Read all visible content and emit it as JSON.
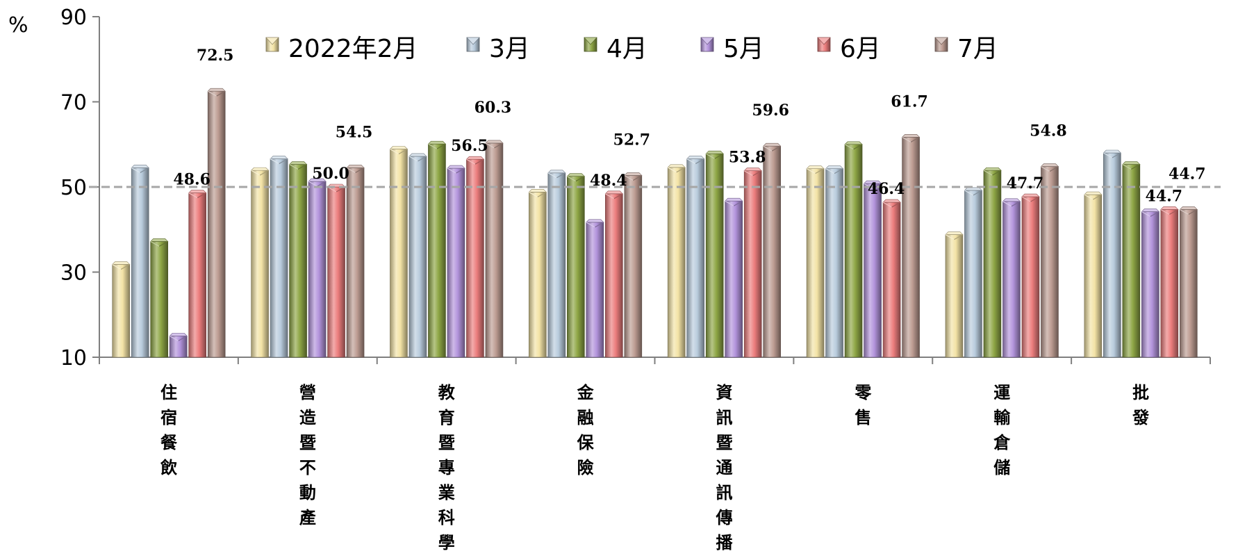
{
  "chart_data": {
    "type": "bar",
    "unit_label": "%",
    "ylim": [
      10,
      90
    ],
    "yticks": [
      10,
      30,
      50,
      70,
      90
    ],
    "reference_line": 50,
    "categories": [
      "住宿餐飲",
      "營造暨不動產",
      "教育暨專業科學",
      "金融保險",
      "資訊暨通訊傳播",
      "零售",
      "運輸倉儲",
      "批發"
    ],
    "series": [
      {
        "name": "2022年2月",
        "color": "#F3E3A6",
        "values": [
          31.8,
          53.9,
          58.9,
          48.8,
          54.6,
          54.3,
          38.8,
          48.2
        ]
      },
      {
        "name": "3月",
        "color": "#B9CCDD",
        "values": [
          54.5,
          56.6,
          57.2,
          53.3,
          56.6,
          54.3,
          49.2,
          58.0
        ]
      },
      {
        "name": "4月",
        "color": "#8EA645",
        "values": [
          37.2,
          55.3,
          60.1,
          52.5,
          57.8,
          60.0,
          53.9,
          55.3
        ]
      },
      {
        "name": "5月",
        "color": "#B394DC",
        "values": [
          15.0,
          51.3,
          54.4,
          41.7,
          46.7,
          50.8,
          46.6,
          44.2
        ]
      },
      {
        "name": "6月",
        "color": "#EC7D7D",
        "values": [
          48.6,
          50.0,
          56.5,
          48.4,
          53.8,
          46.4,
          47.7,
          44.7
        ]
      },
      {
        "name": "7月",
        "color": "#BD9C92",
        "values": [
          72.5,
          54.5,
          60.3,
          52.7,
          59.6,
          61.7,
          54.8,
          44.7
        ]
      }
    ],
    "labels": [
      {
        "category": 0,
        "series": 4,
        "text": "48.6"
      },
      {
        "category": 0,
        "series": 5,
        "text": "72.5"
      },
      {
        "category": 1,
        "series": 4,
        "text": "50.0"
      },
      {
        "category": 1,
        "series": 5,
        "text": "54.5"
      },
      {
        "category": 2,
        "series": 4,
        "text": "56.5"
      },
      {
        "category": 2,
        "series": 5,
        "text": "60.3"
      },
      {
        "category": 3,
        "series": 4,
        "text": "48.4"
      },
      {
        "category": 3,
        "series": 5,
        "text": "52.7"
      },
      {
        "category": 4,
        "series": 4,
        "text": "53.8"
      },
      {
        "category": 4,
        "series": 5,
        "text": "59.6"
      },
      {
        "category": 5,
        "series": 4,
        "text": "46.4"
      },
      {
        "category": 5,
        "series": 5,
        "text": "61.7"
      },
      {
        "category": 6,
        "series": 4,
        "text": "47.7"
      },
      {
        "category": 6,
        "series": 5,
        "text": "54.8"
      },
      {
        "category": 7,
        "series": 4,
        "text": "44.7"
      },
      {
        "category": 7,
        "series": 5,
        "text": "44.7"
      }
    ],
    "legend_position": "top",
    "grid": false
  }
}
